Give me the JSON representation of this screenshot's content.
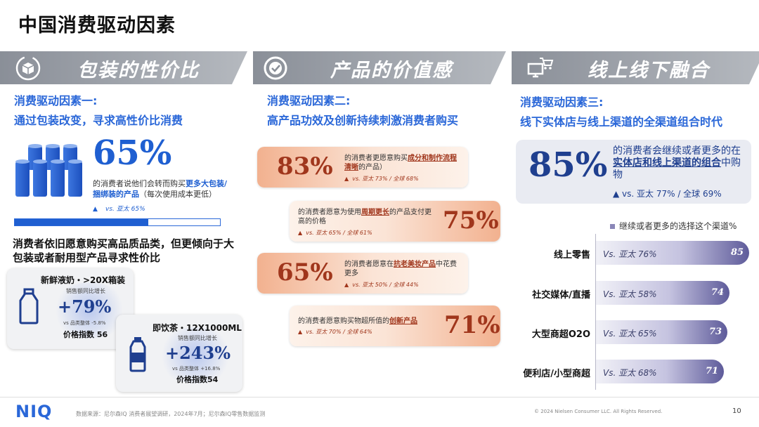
{
  "page_title": "中国消费驱动因素",
  "banners": [
    {
      "icon": "package-cycle-icon",
      "title": "包装的性价比"
    },
    {
      "icon": "check-badge-icon",
      "title": "产品的价值感"
    },
    {
      "icon": "computer-cart-icon",
      "title": "线上线下融合"
    }
  ],
  "col1": {
    "heading": "消费驱动因素一:",
    "subheading": "通过包装改变，寻求高性价比消费",
    "big_value": "65%",
    "desc_prefix": "的消费者说他们会转而购买",
    "desc_strong": "更多大包装/捆绑装的产品",
    "desc_suffix": "（每次使用成本更低）",
    "vs": "vs. 亚太 65%",
    "progress": 0.65,
    "mid_title": "消费者依旧愿意购买高品质品类，但更倾向于大包装或者耐用型产品寻求性价比",
    "card1": {
      "title": "新鲜液奶・>20X箱装",
      "sub": "销售额同比增长",
      "value": "+79%",
      "vs": "vs 品类整体 -5.8%",
      "index": "价格指数 56",
      "icon": "milk-bottle-icon"
    },
    "card2": {
      "title": "即饮茶・12X1000ML",
      "sub": "销售额同比增长",
      "value": "+243%",
      "vs": "vs 品类整体 +16.8%",
      "index": "价格指数54",
      "icon": "water-bottle-icon"
    }
  },
  "col2": {
    "heading": "消费驱动因素二:",
    "subheading": "高产品功效及创新持续刺激消费者购买",
    "items": [
      {
        "value": "83%",
        "pre": "的消费者更愿意购买",
        "strong": "成分和制作流程清晰",
        "post": "的产品）",
        "vs": "vs. 亚太 73% / 全球 68%"
      },
      {
        "value": "75%",
        "pre": "的消费者愿意为使用",
        "strong": "周期更长",
        "post": "的产品支付更高的价格",
        "vs": "vs. 亚太 65% / 全球 61%"
      },
      {
        "value": "65%",
        "pre": "的消费者愿意在",
        "strong": "抗老美妆产品",
        "post": "中花费更多",
        "vs": "vs. 亚太 50% / 全球 44%"
      },
      {
        "value": "71%",
        "pre": "的消费者愿意购买物超所值的",
        "strong": "创新产品",
        "post": "",
        "vs": "vs. 亚太 70% / 全球 64%"
      }
    ]
  },
  "col3": {
    "heading": "消费驱动因素三:",
    "subheading": "线下实体店与线上渠道的全渠道组合时代",
    "big_value": "85%",
    "text_pre": "的消费者会继续或者更多的在",
    "text_strong": "实体店和线上渠道的组合",
    "text_post": "中购物",
    "vs": "▲  vs. 亚太 77% / 全球 69%",
    "legend": "继续或者更多的选择这个渠道%"
  },
  "chart_data": {
    "type": "bar",
    "orientation": "horizontal",
    "categories": [
      "线上零售",
      "社交媒体/直播",
      "大型商超O2O",
      "便利店/小型商超"
    ],
    "values": [
      85,
      74,
      73,
      71
    ],
    "annotations": [
      "Vs. 亚太 76%",
      "Vs. 亚太 58%",
      "Vs. 亚太 65%",
      "Vs. 亚太 68%"
    ],
    "legend": [
      "继续或者更多的选择这个渠道%"
    ],
    "grid": false
  },
  "footer": {
    "logo": "NIQ",
    "source": "数据来源：尼尔森IQ 消费者展望调研，2024年7月；尼尔森IQ零售数据监测",
    "copyright": "© 2024 Nielsen Consumer LLC. All Rights Reserved.",
    "page_number": "10"
  }
}
